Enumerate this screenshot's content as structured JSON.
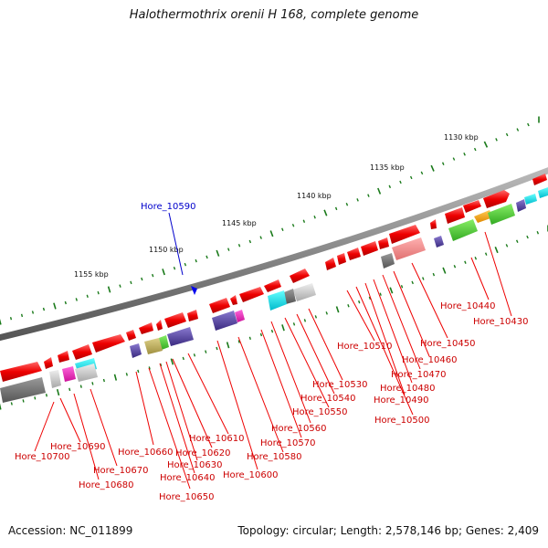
{
  "title": "Halothermothrix orenii H 168, complete genome",
  "accession": "Accession: NC_011899",
  "topology_info": "Topology: circular; Length: 2,578,146 bp; Genes: 2,409",
  "highlight_color": "#0000cc",
  "label_color": "#cc0000",
  "scale_color": "#1a7a1a",
  "kbp_labels": [
    "1130 kbp",
    "1135 kbp",
    "1140 kbp",
    "1145 kbp",
    "1150 kbp",
    "1155 kbp"
  ],
  "highlighted_gene": "Hore_10590",
  "genes": [
    "Hore_10430",
    "Hore_10440",
    "Hore_10450",
    "Hore_10460",
    "Hore_10470",
    "Hore_10480",
    "Hore_10490",
    "Hore_10500",
    "Hore_10510",
    "Hore_10530",
    "Hore_10540",
    "Hore_10550",
    "Hore_10560",
    "Hore_10570",
    "Hore_10580",
    "Hore_10600",
    "Hore_10610",
    "Hore_10620",
    "Hore_10630",
    "Hore_10640",
    "Hore_10650",
    "Hore_10660",
    "Hore_10670",
    "Hore_10680",
    "Hore_10690",
    "Hore_10700"
  ]
}
